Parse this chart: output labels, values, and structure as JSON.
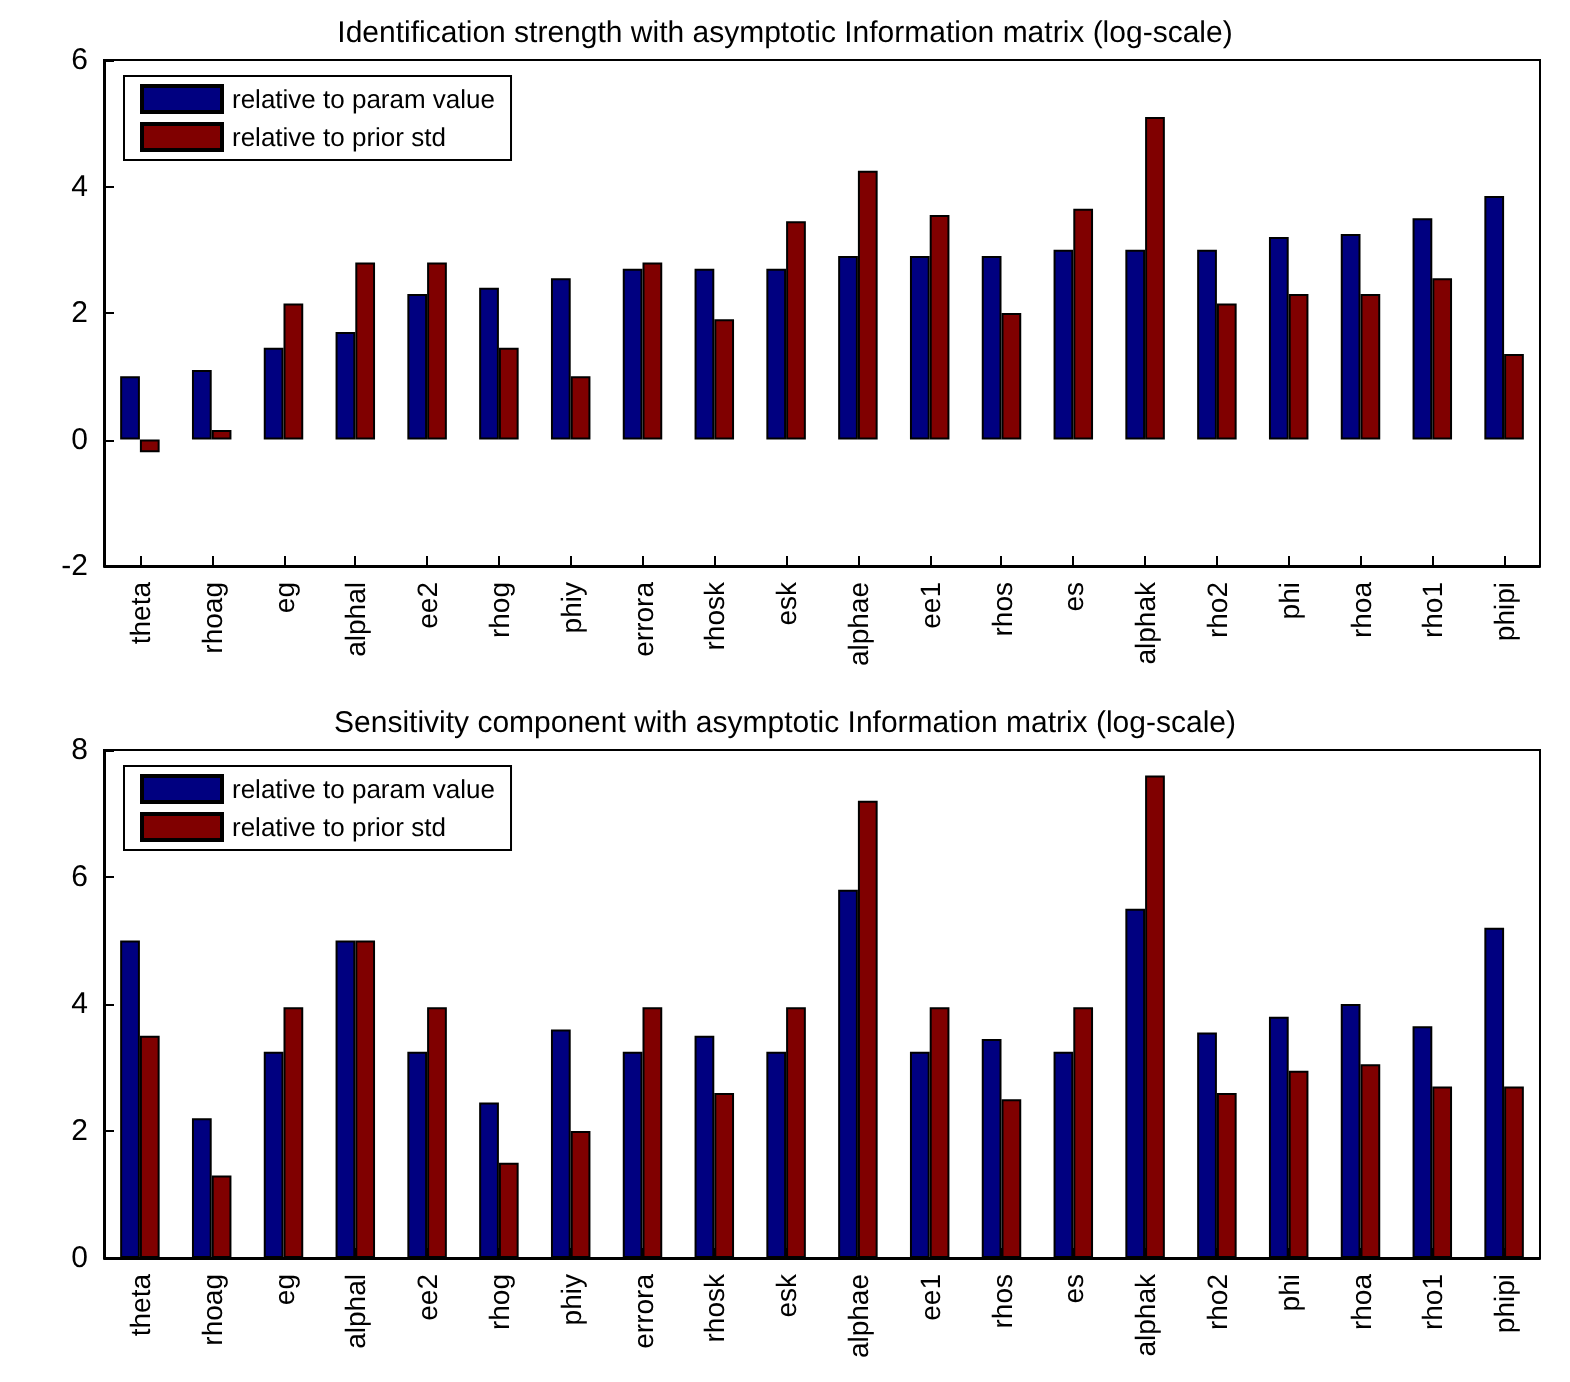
{
  "chart_data": [
    {
      "type": "bar",
      "title": "Identification strength with asymptotic Information matrix (log-scale)",
      "categories": [
        "theta",
        "rhoag",
        "eg",
        "alphal",
        "ee2",
        "rhog",
        "phiy",
        "errora",
        "rhosk",
        "esk",
        "alphae",
        "ee1",
        "rhos",
        "es",
        "alphak",
        "rho2",
        "phi",
        "rhoa",
        "rho1",
        "phipi"
      ],
      "series": [
        {
          "name": "relative to param value",
          "color": "#000080",
          "values": [
            1.0,
            1.1,
            1.45,
            1.7,
            2.3,
            2.4,
            2.55,
            2.7,
            2.7,
            2.7,
            2.9,
            2.9,
            2.9,
            3.0,
            3.0,
            3.0,
            3.2,
            3.25,
            3.5,
            3.85
          ]
        },
        {
          "name": "relative to prior std",
          "color": "#800000",
          "values": [
            -0.2,
            0.15,
            2.15,
            2.8,
            2.8,
            1.45,
            1.0,
            2.8,
            1.9,
            3.45,
            4.25,
            3.55,
            2.0,
            3.65,
            5.1,
            2.15,
            2.3,
            2.3,
            2.55,
            1.35
          ]
        }
      ],
      "ylim": [
        -2,
        6
      ],
      "yticks": [
        -2,
        0,
        2,
        4,
        6
      ],
      "grid": false,
      "legend": "top left"
    },
    {
      "type": "bar",
      "title": "Sensitivity component with asymptotic Information matrix (log-scale)",
      "categories": [
        "theta",
        "rhoag",
        "eg",
        "alphal",
        "ee2",
        "rhog",
        "phiy",
        "errora",
        "rhosk",
        "esk",
        "alphae",
        "ee1",
        "rhos",
        "es",
        "alphak",
        "rho2",
        "phi",
        "rhoa",
        "rho1",
        "phipi"
      ],
      "series": [
        {
          "name": "relative to param value",
          "color": "#000080",
          "values": [
            5.0,
            2.2,
            3.25,
            5.0,
            3.25,
            2.45,
            3.6,
            3.25,
            3.5,
            3.25,
            5.8,
            3.25,
            3.45,
            3.25,
            5.5,
            3.55,
            3.8,
            4.0,
            3.65,
            5.2
          ]
        },
        {
          "name": "relative to prior std",
          "color": "#800000",
          "values": [
            3.5,
            1.3,
            3.95,
            5.0,
            3.95,
            1.5,
            2.0,
            3.95,
            2.6,
            3.95,
            7.2,
            3.95,
            2.5,
            3.95,
            7.6,
            2.6,
            2.95,
            3.05,
            2.7,
            2.7
          ]
        }
      ],
      "ylim": [
        0,
        8
      ],
      "yticks": [
        0,
        2,
        4,
        6,
        8
      ],
      "grid": false,
      "legend": "top left"
    }
  ]
}
